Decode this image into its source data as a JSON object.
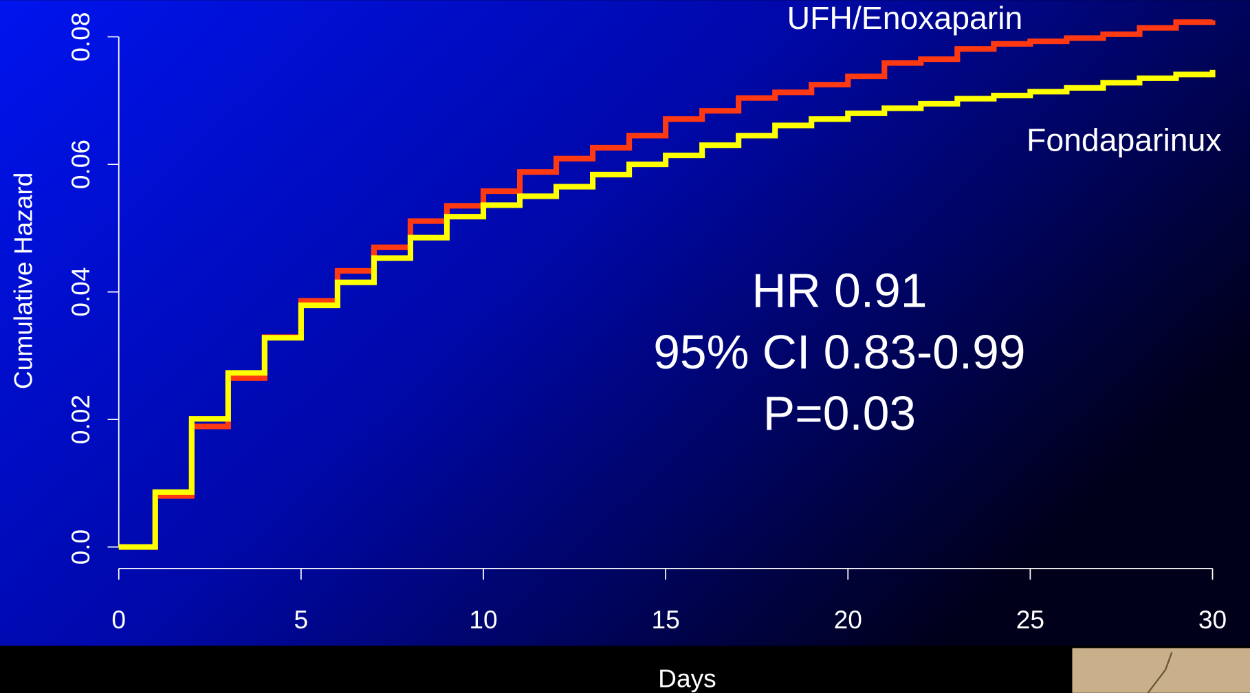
{
  "chart_data": {
    "type": "step",
    "x_label": "Days",
    "y_label": "Cumulative Hazard",
    "annotations": [
      "HR 0.91",
      "95% CI 0.83-0.99",
      "P=0.03"
    ],
    "x": [
      0,
      1,
      2,
      3,
      4,
      5,
      6,
      7,
      8,
      9,
      10,
      11,
      12,
      13,
      14,
      15,
      16,
      17,
      18,
      19,
      20,
      21,
      22,
      23,
      24,
      25,
      26,
      27,
      28,
      29,
      30
    ],
    "series": [
      {
        "name": "UFH/Enoxaparin",
        "color": "#ff3a12",
        "values": [
          0,
          0.008,
          0.0189,
          0.0265,
          0.0329,
          0.0386,
          0.0433,
          0.047,
          0.0511,
          0.0535,
          0.0558,
          0.0588,
          0.0609,
          0.0626,
          0.0645,
          0.0671,
          0.0684,
          0.0704,
          0.0713,
          0.0725,
          0.0738,
          0.0759,
          0.0765,
          0.0781,
          0.0789,
          0.0793,
          0.0798,
          0.0804,
          0.0814,
          0.0823,
          0.0826
        ]
      },
      {
        "name": "Fondaparinux",
        "color": "#ffff00",
        "values": [
          0,
          0.0086,
          0.0201,
          0.0273,
          0.0328,
          0.0379,
          0.0415,
          0.0453,
          0.0485,
          0.0518,
          0.0536,
          0.055,
          0.0565,
          0.0584,
          0.06,
          0.0614,
          0.063,
          0.0645,
          0.0661,
          0.0671,
          0.068,
          0.0688,
          0.0695,
          0.0703,
          0.0708,
          0.0714,
          0.072,
          0.0728,
          0.0735,
          0.0741,
          0.0748
        ]
      }
    ],
    "xlim": [
      0,
      30
    ],
    "ylim": [
      0,
      0.08
    ],
    "xticks": [
      0,
      5,
      10,
      15,
      20,
      25,
      30
    ],
    "yticks": [
      {
        "value": 0,
        "label": "0.0"
      },
      0.02,
      0.04,
      0.06,
      0.08
    ]
  }
}
